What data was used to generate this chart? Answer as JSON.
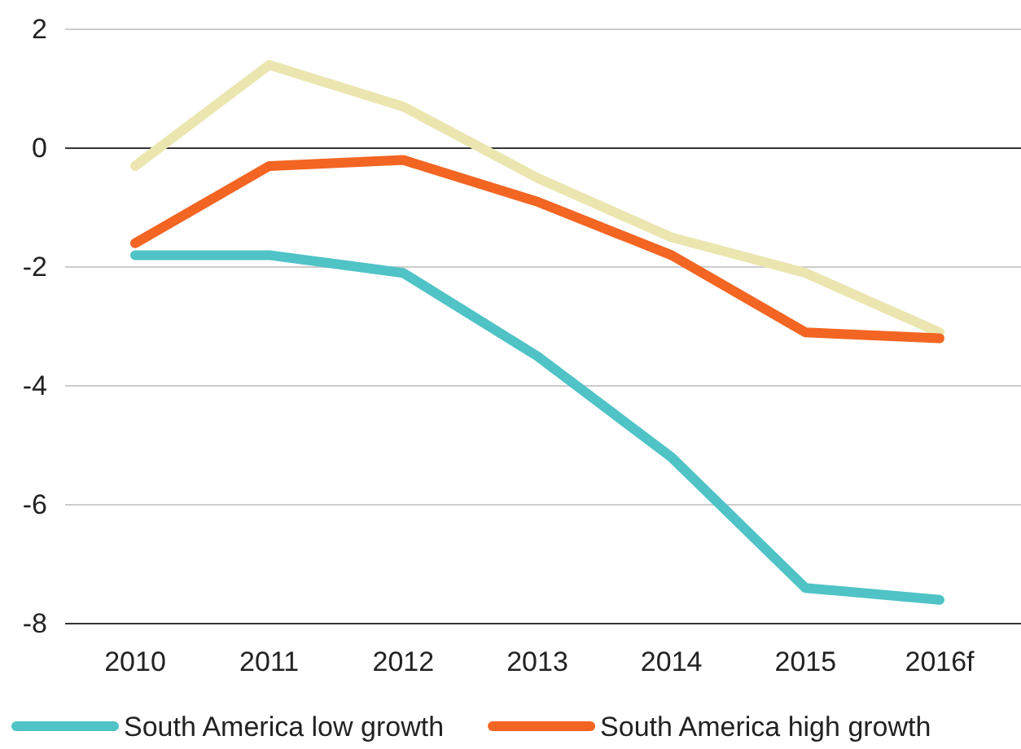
{
  "chart_data": {
    "type": "line",
    "categories": [
      "2010",
      "2011",
      "2012",
      "2013",
      "2014",
      "2015",
      "2016f"
    ],
    "series": [
      {
        "name": "South America low growth",
        "color": "#4fc3c6",
        "values": [
          -1.8,
          -1.8,
          -2.1,
          -3.5,
          -5.2,
          -7.4,
          -7.6
        ]
      },
      {
        "name": "South America high growth",
        "color": "#f26522",
        "values": [
          -1.6,
          -0.3,
          -0.2,
          -0.9,
          -1.8,
          -3.1,
          -3.2
        ]
      },
      {
        "color": "#ebe6b0",
        "values": [
          -0.3,
          1.4,
          0.7,
          -0.5,
          -1.5,
          -2.1,
          -3.1
        ]
      }
    ],
    "ylim": [
      -8,
      2
    ],
    "yticks": [
      -8,
      -6,
      -4,
      -2,
      0,
      2
    ],
    "grid": "y",
    "legend": "bottom",
    "marker": "none",
    "line_style": "solid"
  }
}
